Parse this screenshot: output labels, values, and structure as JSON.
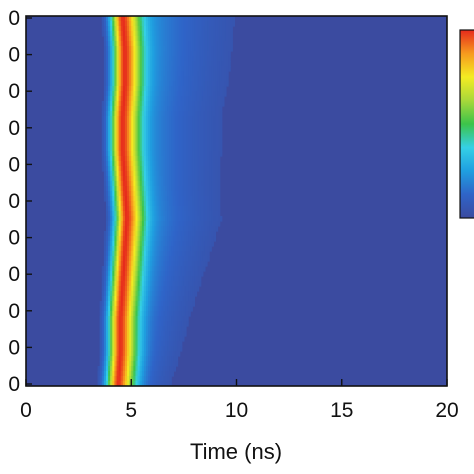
{
  "chart_data": {
    "type": "heatmap",
    "title": "",
    "xlabel": "Time (ns)",
    "ylabel": "",
    "x_ticks": [
      0,
      5,
      10,
      15,
      20
    ],
    "xlim": [
      0,
      20
    ],
    "y_tick_labels": [
      "0",
      "0",
      "0",
      "0",
      "0",
      "0",
      "0",
      "0",
      "0",
      "0",
      "0"
    ],
    "colormap": [
      "#3b4ba0",
      "#2f64c8",
      "#1f9fe0",
      "#35d0e6",
      "#3cc44a",
      "#a8d83a",
      "#f4ec22",
      "#f79a1e",
      "#e62a1c"
    ],
    "background_color": "#3b4ba0",
    "colorbar_colors": [
      "#e62a1c",
      "#3b4ba0"
    ],
    "grid": false,
    "data": {
      "description_of_profile": "intensity vs time for each row",
      "rise_start_ns": 2.9,
      "peak_time_ns_by_row_top_to_bottom": [
        4.6,
        4.7,
        4.7,
        4.6,
        4.6,
        4.7,
        4.8,
        4.7,
        4.6,
        4.5,
        4.5,
        4.4
      ],
      "rise_width_ns": 0.55,
      "decay_tail_ns_by_row_top_to_bottom": [
        2.6,
        2.5,
        2.4,
        2.3,
        2.3,
        2.2,
        2.2,
        2.0,
        1.8,
        1.6,
        1.4,
        1.2
      ]
    }
  }
}
